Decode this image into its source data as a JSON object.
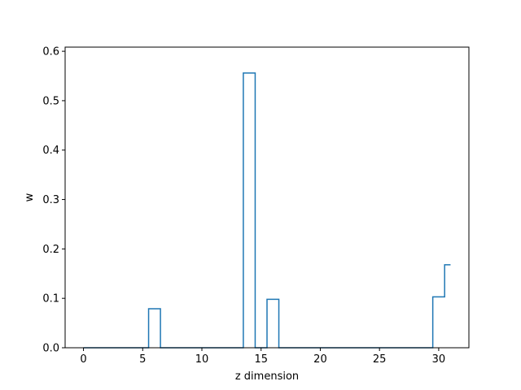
{
  "chart_data": {
    "type": "line",
    "title": "",
    "xlabel": "z dimension",
    "ylabel": "w",
    "xlim": [
      -1.55,
      32.55
    ],
    "ylim": [
      0,
      0.6084
    ],
    "xticks": [
      0,
      5,
      10,
      15,
      20,
      25,
      30
    ],
    "yticks": [
      0.0,
      0.1,
      0.2,
      0.3,
      0.4,
      0.5,
      0.6
    ],
    "xtick_labels": [
      "0",
      "5",
      "10",
      "15",
      "20",
      "25",
      "30"
    ],
    "ytick_labels": [
      "0.0",
      "0.1",
      "0.2",
      "0.3",
      "0.4",
      "0.5",
      "0.6"
    ],
    "grid": false,
    "drawstyle": "steps-mid",
    "series": [
      {
        "color": "#1f77b4",
        "x": [
          0,
          1,
          2,
          3,
          4,
          5,
          6,
          7,
          8,
          9,
          10,
          11,
          12,
          13,
          14,
          15,
          16,
          17,
          18,
          19,
          20,
          21,
          22,
          23,
          24,
          25,
          26,
          27,
          28,
          29,
          30,
          31
        ],
        "y": [
          0,
          0,
          0,
          0,
          0,
          0,
          0.079,
          0,
          0,
          0,
          0,
          0,
          0,
          0,
          0.556,
          0,
          0.098,
          0,
          0,
          0,
          0,
          0,
          0,
          0,
          0,
          0,
          0,
          0,
          0,
          0,
          0.103,
          0.168
        ]
      }
    ]
  }
}
